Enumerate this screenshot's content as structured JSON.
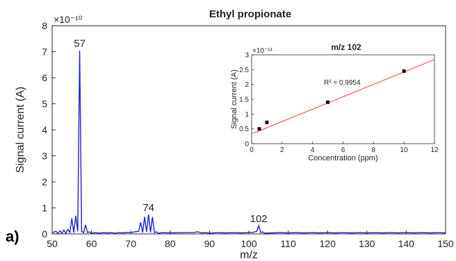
{
  "panel_label": "a)",
  "chart_data": [
    {
      "type": "line",
      "title": "Ethyl propionate",
      "xlabel": "m/z",
      "ylabel": "Signal current (A)",
      "y_exponent": "×10⁻¹⁰",
      "xlim": [
        50,
        150
      ],
      "ylim": [
        0,
        8
      ],
      "xticks": [
        50,
        60,
        70,
        80,
        90,
        100,
        110,
        120,
        130,
        140,
        150
      ],
      "yticks": [
        0,
        1,
        2,
        3,
        4,
        5,
        6,
        7,
        8
      ],
      "color": "#1f1fd6",
      "series": [
        {
          "x": [
            50,
            51,
            51.5,
            52,
            52.5,
            53,
            53.5,
            54,
            54.5,
            55,
            55.5,
            56,
            56.5,
            57,
            57.5,
            58,
            58.5,
            59,
            59.5,
            60,
            61,
            62,
            63,
            64,
            65,
            66,
            67,
            68,
            69,
            70,
            71,
            72,
            72.5,
            73,
            73.5,
            74,
            74.5,
            75,
            75.5,
            76,
            76.5,
            77,
            78,
            80,
            82,
            84,
            86,
            87,
            88,
            89,
            90,
            92,
            94,
            96,
            98,
            100,
            101,
            102,
            102.5,
            103,
            103.5,
            104,
            106,
            108,
            110,
            112,
            114,
            116,
            118,
            120,
            122,
            124,
            126,
            128,
            130,
            132,
            134,
            136,
            138,
            140,
            142,
            144,
            146,
            148,
            150
          ],
          "y": [
            0.05,
            0.1,
            0.02,
            0.12,
            0.03,
            0.15,
            0.02,
            0.18,
            0.05,
            0.6,
            0.05,
            0.7,
            0.1,
            7.05,
            0.1,
            0.05,
            0.35,
            0.05,
            0.08,
            0.03,
            0.05,
            0.03,
            0.05,
            0.04,
            0.05,
            0.03,
            0.05,
            0.04,
            0.06,
            0.05,
            0.08,
            0.1,
            0.45,
            0.05,
            0.65,
            0.08,
            0.75,
            0.05,
            0.65,
            0.05,
            0.08,
            0.03,
            0.05,
            0.04,
            0.05,
            0.05,
            0.06,
            0.08,
            0.04,
            0.05,
            0.03,
            0.05,
            0.04,
            0.05,
            0.04,
            0.05,
            0.06,
            0.1,
            0.32,
            0.05,
            0.08,
            0.03,
            0.04,
            0.05,
            0.04,
            0.05,
            0.04,
            0.05,
            0.04,
            0.05,
            0.04,
            0.05,
            0.04,
            0.05,
            0.04,
            0.05,
            0.04,
            0.05,
            0.04,
            0.05,
            0.04,
            0.05,
            0.04,
            0.05,
            0.04
          ]
        }
      ],
      "annotations": [
        {
          "text": "57",
          "x": 57,
          "y": 7.05
        },
        {
          "text": "74",
          "x": 74.5,
          "y": 0.75
        },
        {
          "text": "102",
          "x": 102.5,
          "y": 0.32
        }
      ]
    },
    {
      "type": "scatter",
      "title": "m/z 102",
      "xlabel": "Concentration (ppm)",
      "ylabel": "Signal current (A)",
      "y_exponent": "×10⁻¹¹",
      "xlim": [
        0,
        12
      ],
      "ylim": [
        0,
        3
      ],
      "xticks": [
        0,
        2,
        4,
        6,
        8,
        10,
        12
      ],
      "yticks": [
        0,
        0.5,
        1,
        1.5,
        2,
        2.5,
        3
      ],
      "ytick_labels": [
        "0",
        "0.5",
        "1",
        "1.5",
        "2",
        "2.5",
        "3"
      ],
      "points": {
        "x": [
          0.5,
          1,
          5,
          10
        ],
        "y": [
          0.5,
          0.72,
          1.4,
          2.45
        ]
      },
      "fit_line": {
        "x": [
          0,
          12
        ],
        "y": [
          0.33,
          2.84
        ],
        "color": "#e8413b"
      },
      "r_squared_label": "R² = 0.9954"
    }
  ]
}
